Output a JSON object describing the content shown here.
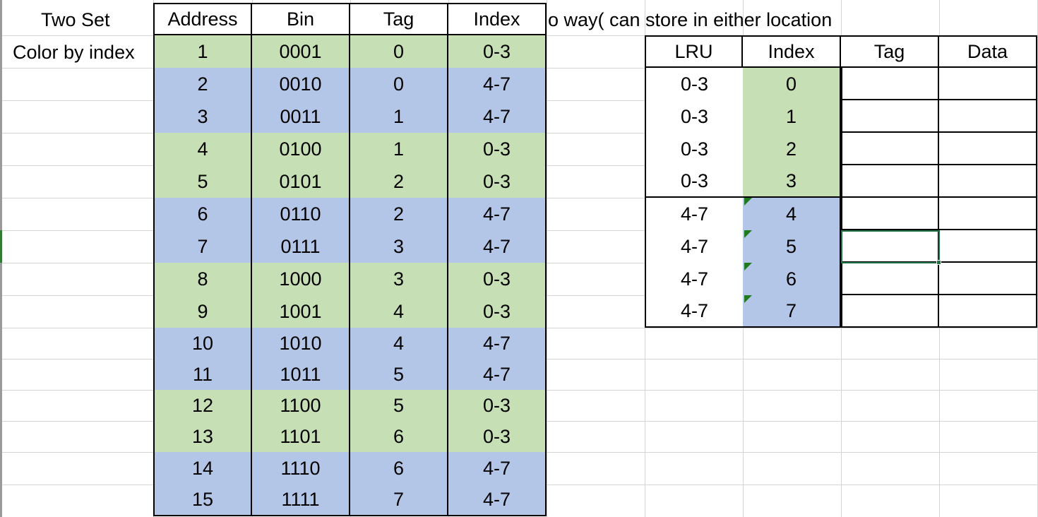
{
  "labels": {
    "two_set": "Two Set",
    "color_by_index": "Color by index",
    "two_way_note": "o way( can store in either location"
  },
  "colors": {
    "group_0_3": "#c6dfb4",
    "group_4_7": "#b4c6e7",
    "selection": "#217346"
  },
  "address_table": {
    "headers": [
      "Address",
      "Bin",
      "Tag",
      "Index"
    ],
    "rows": [
      {
        "address": "1",
        "bin": "0001",
        "tag": "0",
        "index": "0-3",
        "group": "green"
      },
      {
        "address": "2",
        "bin": "0010",
        "tag": "0",
        "index": "4-7",
        "group": "blue"
      },
      {
        "address": "3",
        "bin": "0011",
        "tag": "1",
        "index": "4-7",
        "group": "blue"
      },
      {
        "address": "4",
        "bin": "0100",
        "tag": "1",
        "index": "0-3",
        "group": "green"
      },
      {
        "address": "5",
        "bin": "0101",
        "tag": "2",
        "index": "0-3",
        "group": "green"
      },
      {
        "address": "6",
        "bin": "0110",
        "tag": "2",
        "index": "4-7",
        "group": "blue"
      },
      {
        "address": "7",
        "bin": "0111",
        "tag": "3",
        "index": "4-7",
        "group": "blue"
      },
      {
        "address": "8",
        "bin": "1000",
        "tag": "3",
        "index": "0-3",
        "group": "green"
      },
      {
        "address": "9",
        "bin": "1001",
        "tag": "4",
        "index": "0-3",
        "group": "green"
      },
      {
        "address": "10",
        "bin": "1010",
        "tag": "4",
        "index": "4-7",
        "group": "blue"
      },
      {
        "address": "11",
        "bin": "1011",
        "tag": "5",
        "index": "4-7",
        "group": "blue"
      },
      {
        "address": "12",
        "bin": "1100",
        "tag": "5",
        "index": "0-3",
        "group": "green"
      },
      {
        "address": "13",
        "bin": "1101",
        "tag": "6",
        "index": "0-3",
        "group": "green"
      },
      {
        "address": "14",
        "bin": "1110",
        "tag": "6",
        "index": "4-7",
        "group": "blue"
      },
      {
        "address": "15",
        "bin": "1111",
        "tag": "7",
        "index": "4-7",
        "group": "blue"
      }
    ]
  },
  "cache_table": {
    "headers": [
      "LRU",
      "Index",
      "Tag",
      "Data"
    ],
    "rows": [
      {
        "lru": "0-3",
        "index": "0",
        "tag": "",
        "data": "",
        "group": "green",
        "note": false
      },
      {
        "lru": "0-3",
        "index": "1",
        "tag": "",
        "data": "",
        "group": "green",
        "note": false
      },
      {
        "lru": "0-3",
        "index": "2",
        "tag": "",
        "data": "",
        "group": "green",
        "note": false
      },
      {
        "lru": "0-3",
        "index": "3",
        "tag": "",
        "data": "",
        "group": "green",
        "note": false
      },
      {
        "lru": "4-7",
        "index": "4",
        "tag": "",
        "data": "",
        "group": "blue",
        "note": true
      },
      {
        "lru": "4-7",
        "index": "5",
        "tag": "",
        "data": "",
        "group": "blue",
        "note": true
      },
      {
        "lru": "4-7",
        "index": "6",
        "tag": "",
        "data": "",
        "group": "blue",
        "note": true
      },
      {
        "lru": "4-7",
        "index": "7",
        "tag": "",
        "data": "",
        "group": "blue",
        "note": true
      }
    ]
  }
}
